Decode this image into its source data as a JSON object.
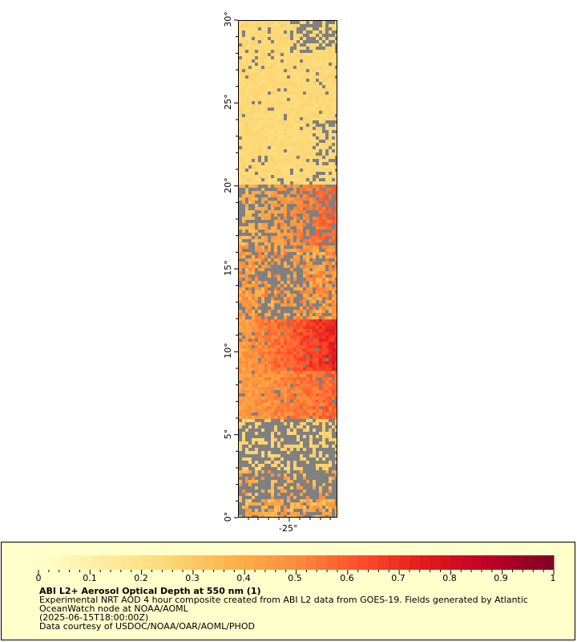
{
  "map": {
    "lat_labels": [
      "0°",
      "5°",
      "10°",
      "15°",
      "20°",
      "25°",
      "30°"
    ],
    "lon_labels": [
      "-25°"
    ],
    "missing_color": "#808080"
  },
  "colorbar": {
    "min": 0,
    "max": 1,
    "ticks": [
      "0",
      "0.1",
      "0.2",
      "0.3",
      "0.4",
      "0.5",
      "0.6",
      "0.7",
      "0.8",
      "0.9",
      "1"
    ],
    "colors": [
      "#ffffcc",
      "#ffeda0",
      "#fed976",
      "#feb24c",
      "#fd8d3c",
      "#fc4e2a",
      "#e31a1c",
      "#bd0026",
      "#800026"
    ]
  },
  "legend": {
    "title": "ABI L2+ Aerosol Optical Depth at 550 nm (1)",
    "line1": "Experimental NRT AOD 4 hour composite created from ABI L2 data from GOES-19. Fields generated by Atlantic",
    "line2": "OceanWatch node at NOAA/AOML",
    "line3": "(2025-06-15T18:00:00Z)",
    "line4": "Data courtesy of USDOC/NOAA/OAR/AOML/PHOD"
  }
}
